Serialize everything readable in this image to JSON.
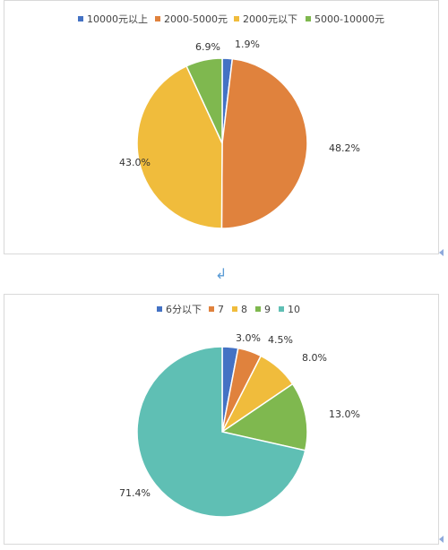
{
  "chart_data": [
    {
      "type": "pie",
      "categories": [
        "10000元以上",
        "2000-5000元",
        "2000元以下",
        "5000-10000元"
      ],
      "values": [
        1.9,
        48.2,
        43.0,
        6.9
      ],
      "labels": [
        "1.9%",
        "48.2%",
        "43.0%",
        "6.9%"
      ],
      "colors": [
        "#4472c4",
        "#e0823d",
        "#f0bc3c",
        "#7fb84f"
      ],
      "legend_position": "top",
      "start_angle_deg": 0,
      "direction": "clockwise"
    },
    {
      "type": "pie",
      "categories": [
        "6分以下",
        "7",
        "8",
        "9",
        "10"
      ],
      "values": [
        3.0,
        4.5,
        8.0,
        13.0,
        71.4
      ],
      "labels": [
        "3.0%",
        "4.5%",
        "8.0%",
        "13.0%",
        "71.4%"
      ],
      "colors": [
        "#4472c4",
        "#e0823d",
        "#f0bc3c",
        "#7fb84f",
        "#5fbfb4"
      ],
      "legend_position": "top",
      "start_angle_deg": 0,
      "direction": "clockwise"
    }
  ],
  "decor": {
    "return_symbol": "↲"
  }
}
